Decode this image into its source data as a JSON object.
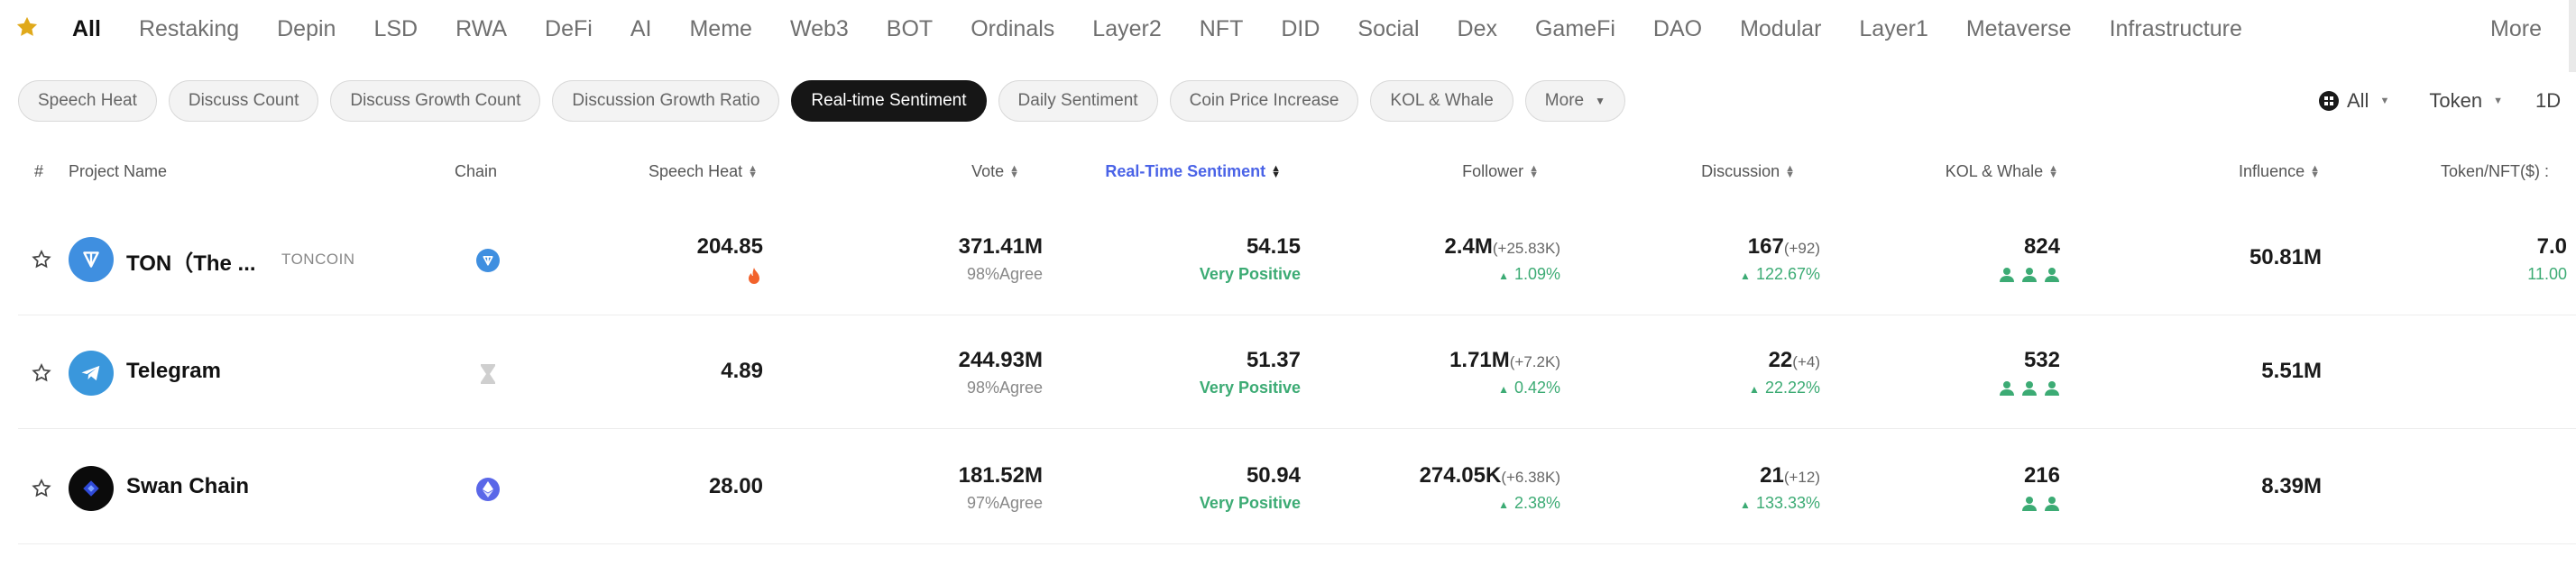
{
  "categories": {
    "items": [
      "All",
      "Restaking",
      "Depin",
      "LSD",
      "RWA",
      "DeFi",
      "AI",
      "Meme",
      "Web3",
      "BOT",
      "Ordinals",
      "Layer2",
      "NFT",
      "DID",
      "Social",
      "Dex",
      "GameFi",
      "DAO",
      "Modular",
      "Layer1",
      "Metaverse",
      "Infrastructure"
    ],
    "more": "More"
  },
  "chips": {
    "items": [
      "Speech Heat",
      "Discuss Count",
      "Discuss Growth Count",
      "Discussion Growth Ratio",
      "Real-time Sentiment",
      "Daily Sentiment",
      "Coin Price Increase",
      "KOL & Whale"
    ],
    "more": "More",
    "active": "Real-time Sentiment"
  },
  "filters": {
    "chain": "All",
    "type": "Token",
    "period": "1D"
  },
  "table": {
    "headers": {
      "index": "#",
      "project": "Project Name",
      "chain": "Chain",
      "speech_heat": "Speech Heat",
      "vote": "Vote",
      "sentiment": "Real-Time Sentiment",
      "follower": "Follower",
      "discussion": "Discussion",
      "kol": "KOL & Whale",
      "influence": "Influence",
      "price": "Token/NFT($) :"
    },
    "rows": [
      {
        "name": "TON（The ...",
        "ticker": "TONCOIN",
        "logo_icon": "ton-logo-icon",
        "chain_icon": "ton-chain-icon",
        "speech_heat": "204.85",
        "hot_icon": "fire-icon",
        "vote": "371.41M",
        "agree": "98%Agree",
        "sentiment": "54.15",
        "sentiment_label": "Very Positive",
        "follower": "2.4M",
        "follower_delta": "(+25.83K)",
        "follower_pct": "1.09%",
        "discussion": "167",
        "discussion_delta": "(+92)",
        "discussion_pct": "122.67%",
        "kol": "824",
        "kol_users": 3,
        "influence": "50.81M",
        "price": "7.0",
        "price_change": "11.00"
      },
      {
        "name": "Telegram",
        "ticker": "",
        "logo_icon": "telegram-logo-icon",
        "chain_icon": "hourglass-icon",
        "speech_heat": "4.89",
        "vote": "244.93M",
        "agree": "98%Agree",
        "sentiment": "51.37",
        "sentiment_label": "Very Positive",
        "follower": "1.71M",
        "follower_delta": "(+7.2K)",
        "follower_pct": "0.42%",
        "discussion": "22",
        "discussion_delta": "(+4)",
        "discussion_pct": "22.22%",
        "kol": "532",
        "kol_users": 3,
        "influence": "5.51M"
      },
      {
        "name": "Swan Chain",
        "ticker": "",
        "logo_icon": "swan-chain-logo-icon",
        "chain_icon": "ethereum-icon",
        "speech_heat": "28.00",
        "vote": "181.52M",
        "agree": "97%Agree",
        "sentiment": "50.94",
        "sentiment_label": "Very Positive",
        "follower": "274.05K",
        "follower_delta": "(+6.38K)",
        "follower_pct": "2.38%",
        "discussion": "21",
        "discussion_delta": "(+12)",
        "discussion_pct": "133.33%",
        "kol": "216",
        "kol_users": 2,
        "influence": "8.39M"
      }
    ]
  },
  "colors": {
    "accent": "#4a63e7",
    "positive": "#3cab74",
    "active_chip": "#161616",
    "star": "#e0a91b",
    "ton_blue": "#3f8fe0",
    "hot": "#f2622c"
  }
}
